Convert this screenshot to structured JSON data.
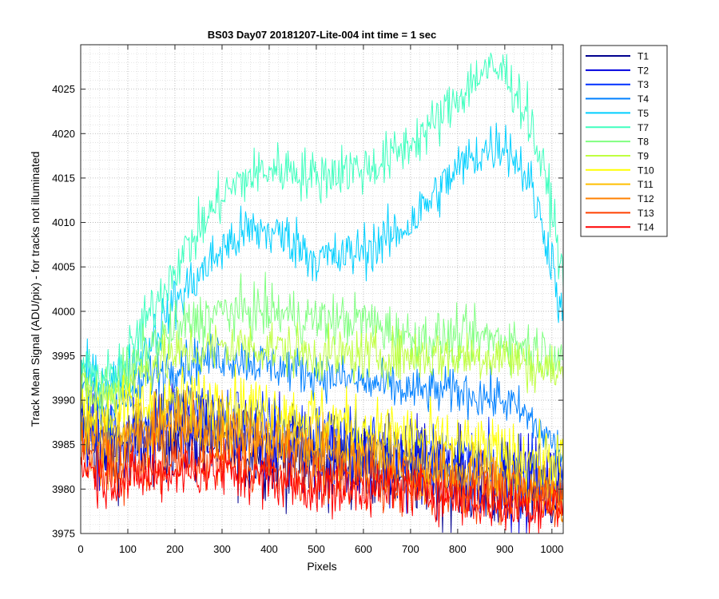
{
  "chart_data": {
    "type": "line",
    "title": "BS03 Day07 20181207-Lite-004 int time = 1 sec",
    "xlabel": "Pixels",
    "ylabel": "Track Mean Signal (ADU/pix) - for tracks not illuminated",
    "xlim": [
      0,
      1024
    ],
    "ylim": [
      3975,
      4030
    ],
    "xticks": [
      0,
      100,
      200,
      300,
      400,
      500,
      600,
      700,
      800,
      900,
      1000
    ],
    "yticks": [
      3975,
      3980,
      3985,
      3990,
      3995,
      4000,
      4005,
      4010,
      4015,
      4020,
      4025
    ],
    "grid": "major and minor (dotted)",
    "legend_location": "outside right, top",
    "series": [
      {
        "name": "T1",
        "color": "#00008f",
        "noise": 2.5,
        "profile": [
          [
            0,
            3987
          ],
          [
            50,
            3984
          ],
          [
            100,
            3985
          ],
          [
            200,
            3986
          ],
          [
            300,
            3985
          ],
          [
            400,
            3984
          ],
          [
            500,
            3983
          ],
          [
            600,
            3983
          ],
          [
            700,
            3982
          ],
          [
            800,
            3981
          ],
          [
            900,
            3980
          ],
          [
            1024,
            3980
          ]
        ]
      },
      {
        "name": "T2",
        "color": "#0000df",
        "noise": 2.5,
        "profile": [
          [
            0,
            3987
          ],
          [
            50,
            3984
          ],
          [
            100,
            3985
          ],
          [
            200,
            3986
          ],
          [
            300,
            3986
          ],
          [
            400,
            3985
          ],
          [
            500,
            3984
          ],
          [
            600,
            3983
          ],
          [
            700,
            3983
          ],
          [
            800,
            3982
          ],
          [
            900,
            3981
          ],
          [
            1024,
            3981
          ]
        ]
      },
      {
        "name": "T3",
        "color": "#0030ff",
        "noise": 2.0,
        "profile": [
          [
            0,
            3988
          ],
          [
            50,
            3986
          ],
          [
            100,
            3987
          ],
          [
            200,
            3989
          ],
          [
            300,
            3988
          ],
          [
            400,
            3987
          ],
          [
            500,
            3986
          ],
          [
            600,
            3985
          ],
          [
            700,
            3984
          ],
          [
            800,
            3983
          ],
          [
            900,
            3982
          ],
          [
            1024,
            3981
          ]
        ]
      },
      {
        "name": "T4",
        "color": "#0080ff",
        "noise": 1.3,
        "profile": [
          [
            0,
            3992
          ],
          [
            50,
            3989
          ],
          [
            100,
            3990
          ],
          [
            150,
            3993
          ],
          [
            200,
            3994
          ],
          [
            300,
            3995
          ],
          [
            400,
            3994
          ],
          [
            500,
            3993
          ],
          [
            600,
            3992
          ],
          [
            700,
            3991
          ],
          [
            800,
            3991
          ],
          [
            900,
            3990
          ],
          [
            950,
            3988
          ],
          [
            1024,
            3984
          ]
        ]
      },
      {
        "name": "T5",
        "color": "#00cfff",
        "noise": 1.5,
        "profile": [
          [
            0,
            3993
          ],
          [
            50,
            3992
          ],
          [
            100,
            3993
          ],
          [
            150,
            3997
          ],
          [
            200,
            4001
          ],
          [
            250,
            4004
          ],
          [
            300,
            4007
          ],
          [
            350,
            4009
          ],
          [
            400,
            4009
          ],
          [
            450,
            4008
          ],
          [
            500,
            4006
          ],
          [
            550,
            4006
          ],
          [
            600,
            4007
          ],
          [
            650,
            4008
          ],
          [
            700,
            4010
          ],
          [
            750,
            4013
          ],
          [
            800,
            4016
          ],
          [
            850,
            4018
          ],
          [
            900,
            4019
          ],
          [
            950,
            4015
          ],
          [
            1000,
            4006
          ],
          [
            1024,
            3998
          ]
        ]
      },
      {
        "name": "T7",
        "color": "#40ffbf",
        "noise": 1.5,
        "profile": [
          [
            0,
            3994
          ],
          [
            50,
            3992
          ],
          [
            100,
            3995
          ],
          [
            150,
            4000
          ],
          [
            200,
            4005
          ],
          [
            250,
            4009
          ],
          [
            300,
            4013
          ],
          [
            350,
            4015
          ],
          [
            400,
            4016
          ],
          [
            450,
            4016
          ],
          [
            500,
            4015
          ],
          [
            550,
            4016
          ],
          [
            600,
            4016
          ],
          [
            650,
            4017
          ],
          [
            700,
            4019
          ],
          [
            750,
            4021
          ],
          [
            800,
            4024
          ],
          [
            850,
            4027
          ],
          [
            900,
            4027
          ],
          [
            950,
            4022
          ],
          [
            1000,
            4012
          ],
          [
            1024,
            4003
          ]
        ]
      },
      {
        "name": "T8",
        "color": "#80ff80",
        "noise": 1.5,
        "profile": [
          [
            0,
            3992
          ],
          [
            50,
            3991
          ],
          [
            100,
            3993
          ],
          [
            150,
            3996
          ],
          [
            200,
            3998
          ],
          [
            300,
            4000
          ],
          [
            400,
            4000
          ],
          [
            500,
            3999
          ],
          [
            600,
            3999
          ],
          [
            650,
            3998
          ],
          [
            700,
            3997
          ],
          [
            750,
            3997
          ],
          [
            800,
            3997
          ],
          [
            900,
            3997
          ],
          [
            950,
            3996
          ],
          [
            1024,
            3995
          ]
        ]
      },
      {
        "name": "T9",
        "color": "#bfff40",
        "noise": 1.5,
        "profile": [
          [
            0,
            3991
          ],
          [
            50,
            3990
          ],
          [
            100,
            3992
          ],
          [
            150,
            3994
          ],
          [
            200,
            3995
          ],
          [
            300,
            3996
          ],
          [
            400,
            3996
          ],
          [
            500,
            3995
          ],
          [
            600,
            3995
          ],
          [
            700,
            3995
          ],
          [
            800,
            3995
          ],
          [
            900,
            3995
          ],
          [
            950,
            3994
          ],
          [
            1024,
            3993
          ]
        ]
      },
      {
        "name": "T10",
        "color": "#ffff00",
        "noise": 1.8,
        "profile": [
          [
            0,
            3989
          ],
          [
            50,
            3988
          ],
          [
            100,
            3989
          ],
          [
            200,
            3990
          ],
          [
            300,
            3990
          ],
          [
            400,
            3989
          ],
          [
            500,
            3988
          ],
          [
            600,
            3987
          ],
          [
            700,
            3986
          ],
          [
            800,
            3985
          ],
          [
            900,
            3984
          ],
          [
            1024,
            3983
          ]
        ]
      },
      {
        "name": "T11",
        "color": "#ffbf00",
        "noise": 1.8,
        "profile": [
          [
            0,
            3987
          ],
          [
            50,
            3985
          ],
          [
            100,
            3986
          ],
          [
            200,
            3988
          ],
          [
            300,
            3987
          ],
          [
            400,
            3986
          ],
          [
            500,
            3985
          ],
          [
            600,
            3984
          ],
          [
            700,
            3983
          ],
          [
            800,
            3982
          ],
          [
            900,
            3981
          ],
          [
            1024,
            3980
          ]
        ]
      },
      {
        "name": "T12",
        "color": "#ff8000",
        "noise": 1.8,
        "profile": [
          [
            0,
            3986
          ],
          [
            50,
            3984
          ],
          [
            100,
            3985
          ],
          [
            200,
            3987
          ],
          [
            300,
            3986
          ],
          [
            400,
            3985
          ],
          [
            500,
            3984
          ],
          [
            600,
            3983
          ],
          [
            700,
            3982
          ],
          [
            800,
            3981
          ],
          [
            900,
            3980
          ],
          [
            1024,
            3979
          ]
        ]
      },
      {
        "name": "T13",
        "color": "#ff4000",
        "noise": 1.5,
        "profile": [
          [
            0,
            3984
          ],
          [
            50,
            3982
          ],
          [
            100,
            3982
          ],
          [
            200,
            3983
          ],
          [
            300,
            3983
          ],
          [
            400,
            3982
          ],
          [
            500,
            3981
          ],
          [
            600,
            3981
          ],
          [
            700,
            3980
          ],
          [
            800,
            3980
          ],
          [
            900,
            3979
          ],
          [
            1024,
            3979
          ]
        ]
      },
      {
        "name": "T14",
        "color": "#ff0000",
        "noise": 1.5,
        "profile": [
          [
            0,
            3983
          ],
          [
            50,
            3981
          ],
          [
            100,
            3981
          ],
          [
            200,
            3982
          ],
          [
            300,
            3982
          ],
          [
            400,
            3981
          ],
          [
            500,
            3980
          ],
          [
            600,
            3980
          ],
          [
            700,
            3980
          ],
          [
            800,
            3979
          ],
          [
            900,
            3978
          ],
          [
            1024,
            3978
          ]
        ]
      }
    ]
  }
}
